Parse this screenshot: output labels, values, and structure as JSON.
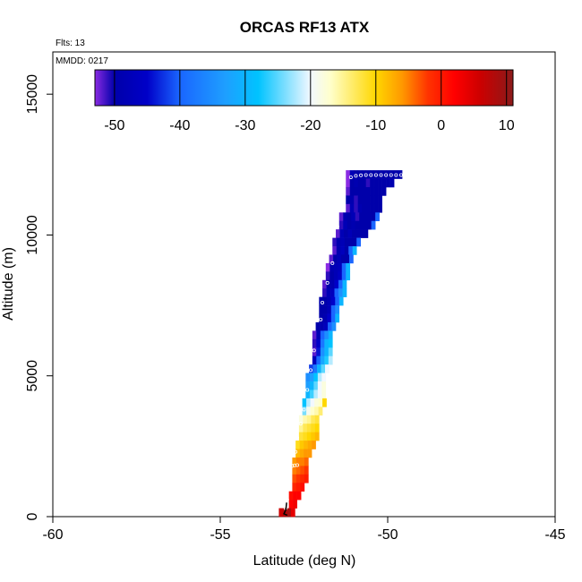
{
  "chart_data": {
    "type": "heatmap",
    "title": "ORCAS RF13 ATX",
    "annotations": {
      "flights": "Flts: 13",
      "date": "MMDD: 0217"
    },
    "xlabel": "Latitude (deg N)",
    "ylabel": "Altitude (m)",
    "xlim": [
      -60,
      -45
    ],
    "ylim": [
      0,
      16500
    ],
    "xticks": [
      -60,
      -55,
      -50,
      -45
    ],
    "xtick_labels": [
      "-60",
      "-55",
      "-50",
      "-45"
    ],
    "yticks": [
      0,
      5000,
      10000,
      15000
    ],
    "ytick_labels": [
      "0",
      "5000",
      "10000",
      "15000"
    ],
    "colorbar": {
      "range": [
        -53,
        11
      ],
      "ticks": [
        -50,
        -40,
        -30,
        -20,
        -10,
        0,
        10
      ],
      "tick_labels": [
        "-50",
        "-40",
        "-30",
        "-20",
        "-10",
        "0",
        "10"
      ],
      "stops": [
        {
          "v": -53,
          "c": "#8a2be2"
        },
        {
          "v": -50,
          "c": "#0000aa"
        },
        {
          "v": -45,
          "c": "#0000c8"
        },
        {
          "v": -40,
          "c": "#1a66ff"
        },
        {
          "v": -33,
          "c": "#1e9fff"
        },
        {
          "v": -28,
          "c": "#00c3ff"
        },
        {
          "v": -20,
          "c": "#f2f8ff"
        },
        {
          "v": -17,
          "c": "#ffffcc"
        },
        {
          "v": -10,
          "c": "#ffd700"
        },
        {
          "v": -6,
          "c": "#ff9900"
        },
        {
          "v": -2,
          "c": "#ff3300"
        },
        {
          "v": 2,
          "c": "#ff0000"
        },
        {
          "v": 6,
          "c": "#cc0000"
        },
        {
          "v": 11,
          "c": "#8b1a1a"
        }
      ]
    },
    "cell_size": {
      "dlat": 0.12,
      "dalt": 300
    },
    "rows": [
      {
        "alt": 12150,
        "lat_start": -51.25,
        "values": [
          -53,
          -48,
          -50,
          -50,
          -50,
          -50,
          -50,
          -50,
          -50,
          -50,
          -50,
          -50,
          -50,
          -50
        ]
      },
      {
        "alt": 11850,
        "lat_start": -51.25,
        "values": [
          -53,
          -50,
          -49,
          -50,
          -50,
          -51,
          -50,
          -50,
          -50,
          -50,
          -50,
          -49
        ]
      },
      {
        "alt": 11550,
        "lat_start": -51.25,
        "values": [
          -52,
          -50,
          -50,
          -50,
          -50,
          -50,
          -50,
          -50,
          -50,
          -50
        ]
      },
      {
        "alt": 11250,
        "lat_start": -51.25,
        "values": [
          -50,
          -49,
          -51,
          -50,
          -50,
          -50,
          -50,
          -50,
          -50
        ]
      },
      {
        "alt": 10950,
        "lat_start": -51.25,
        "values": [
          -52,
          -48,
          -51,
          -49,
          -50,
          -50,
          -50,
          -50,
          -50
        ]
      },
      {
        "alt": 10650,
        "lat_start": -51.45,
        "values": [
          -52,
          -49,
          -50,
          -48,
          -51,
          -50,
          -50,
          -50,
          -50,
          -40
        ]
      },
      {
        "alt": 10350,
        "lat_start": -51.45,
        "values": [
          -51,
          -48,
          -50,
          -49,
          -50,
          -50,
          -50,
          -50,
          -40
        ]
      },
      {
        "alt": 10050,
        "lat_start": -51.55,
        "values": [
          -52,
          -48,
          -50,
          -48,
          -50,
          -50,
          -50,
          -50
        ]
      },
      {
        "alt": 9750,
        "lat_start": -51.65,
        "values": [
          -51,
          -49,
          -48,
          -50,
          -50,
          -50,
          -40
        ]
      },
      {
        "alt": 9450,
        "lat_start": -51.65,
        "values": [
          -52,
          -49,
          -47,
          -50,
          -40,
          -30
        ]
      },
      {
        "alt": 9150,
        "lat_start": -51.75,
        "values": [
          -52,
          -50,
          -48,
          -50,
          -50,
          -40
        ]
      },
      {
        "alt": 8850,
        "lat_start": -51.85,
        "values": [
          -53,
          -49,
          -48,
          -47,
          -40,
          -30
        ]
      },
      {
        "alt": 8550,
        "lat_start": -51.85,
        "values": [
          -51,
          -50,
          -48,
          -46,
          -40,
          -30
        ]
      },
      {
        "alt": 8250,
        "lat_start": -51.95,
        "values": [
          -52,
          -50,
          -49,
          -45,
          -40,
          -30
        ]
      },
      {
        "alt": 7950,
        "lat_start": -51.95,
        "values": [
          -51,
          -48,
          -47,
          -40,
          -35,
          -30
        ]
      },
      {
        "alt": 7650,
        "lat_start": -52.05,
        "values": [
          -50,
          -50,
          -48,
          -45,
          -40,
          -30
        ]
      },
      {
        "alt": 7350,
        "lat_start": -52.05,
        "values": [
          -50,
          -50,
          -48,
          -40,
          -35
        ]
      },
      {
        "alt": 7050,
        "lat_start": -52.05,
        "values": [
          -50,
          -49,
          -45,
          -40,
          -30
        ]
      },
      {
        "alt": 6750,
        "lat_start": -52.15,
        "values": [
          -50,
          -49,
          -47,
          -40,
          -35
        ]
      },
      {
        "alt": 6450,
        "lat_start": -52.25,
        "values": [
          -52,
          -48,
          -40,
          -35,
          -30
        ]
      },
      {
        "alt": 6150,
        "lat_start": -52.25,
        "values": [
          -51,
          -45,
          -38,
          -30,
          -28
        ]
      },
      {
        "alt": 5850,
        "lat_start": -52.25,
        "values": [
          -52,
          -44,
          -35,
          -30,
          -25
        ]
      },
      {
        "alt": 5550,
        "lat_start": -52.25,
        "values": [
          -47,
          -40,
          -32,
          -27,
          -22
        ]
      },
      {
        "alt": 5250,
        "lat_start": -52.35,
        "values": [
          -42,
          -38,
          -30,
          -25,
          -20
        ]
      },
      {
        "alt": 4950,
        "lat_start": -52.45,
        "values": [
          -35,
          -33,
          -28,
          -22,
          -20
        ]
      },
      {
        "alt": 4650,
        "lat_start": -52.45,
        "values": [
          -33,
          -30,
          -25,
          -20,
          -18
        ]
      },
      {
        "alt": 4350,
        "lat_start": -52.45,
        "values": [
          -30,
          -26,
          -22,
          -20,
          -18
        ]
      },
      {
        "alt": 4050,
        "lat_start": -52.55,
        "values": [
          -28,
          -22,
          -20,
          -18,
          -17,
          -10
        ]
      },
      {
        "alt": 3750,
        "lat_start": -52.55,
        "values": [
          -24,
          -19,
          -17,
          -16,
          -14
        ]
      },
      {
        "alt": 3450,
        "lat_start": -52.65,
        "values": [
          -18,
          -16,
          -15,
          -13,
          -12
        ]
      },
      {
        "alt": 3150,
        "lat_start": -52.65,
        "values": [
          -15,
          -13,
          -12,
          -11,
          -10
        ]
      },
      {
        "alt": 2850,
        "lat_start": -52.65,
        "values": [
          -12,
          -11,
          -10,
          -9,
          -8
        ]
      },
      {
        "alt": 2550,
        "lat_start": -52.75,
        "values": [
          -11,
          -9,
          -8,
          -7,
          -6
        ]
      },
      {
        "alt": 2250,
        "lat_start": -52.75,
        "values": [
          -8,
          -7,
          -6,
          -6
        ]
      },
      {
        "alt": 1950,
        "lat_start": -52.85,
        "values": [
          -6,
          -5,
          -5,
          -4
        ]
      },
      {
        "alt": 1650,
        "lat_start": -52.85,
        "values": [
          -5,
          -4,
          -3,
          -2
        ]
      },
      {
        "alt": 1350,
        "lat_start": -52.85,
        "values": [
          -3,
          -2,
          -1,
          0
        ]
      },
      {
        "alt": 1050,
        "lat_start": -52.85,
        "values": [
          -1,
          0,
          1
        ]
      },
      {
        "alt": 750,
        "lat_start": -52.95,
        "values": [
          1,
          2,
          2
        ]
      },
      {
        "alt": 450,
        "lat_start": -52.95,
        "values": [
          2,
          3
        ]
      },
      {
        "alt": 150,
        "lat_start": -53.25,
        "values": [
          6,
          8,
          9,
          4
        ]
      }
    ],
    "track_points": [
      {
        "lat": -51.1,
        "alt": 12050
      },
      {
        "lat": -50.95,
        "alt": 12100
      },
      {
        "lat": -50.8,
        "alt": 12120
      },
      {
        "lat": -50.65,
        "alt": 12130
      },
      {
        "lat": -50.5,
        "alt": 12130
      },
      {
        "lat": -50.35,
        "alt": 12130
      },
      {
        "lat": -50.2,
        "alt": 12130
      },
      {
        "lat": -50.05,
        "alt": 12130
      },
      {
        "lat": -49.9,
        "alt": 12130
      },
      {
        "lat": -49.75,
        "alt": 12130
      },
      {
        "lat": -49.6,
        "alt": 12130
      },
      {
        "lat": -51.5,
        "alt": 10300
      },
      {
        "lat": -51.65,
        "alt": 9000
      },
      {
        "lat": -51.8,
        "alt": 8300
      },
      {
        "lat": -51.95,
        "alt": 7600
      },
      {
        "lat": -52.0,
        "alt": 7000
      },
      {
        "lat": -52.2,
        "alt": 5900
      },
      {
        "lat": -52.3,
        "alt": 5200
      },
      {
        "lat": -52.4,
        "alt": 4500
      },
      {
        "lat": -52.5,
        "alt": 3800
      },
      {
        "lat": -52.6,
        "alt": 3300
      },
      {
        "lat": -52.7,
        "alt": 2800
      },
      {
        "lat": -52.75,
        "alt": 2300
      },
      {
        "lat": -52.85,
        "alt": 1800
      },
      {
        "lat": -52.78,
        "alt": 1820
      },
      {
        "lat": -52.7,
        "alt": 1830
      },
      {
        "lat": -52.95,
        "alt": 1200
      },
      {
        "lat": -53.0,
        "alt": 600
      },
      {
        "lat": -53.05,
        "alt": 300
      }
    ],
    "descent_line": [
      {
        "lat": -53.02,
        "alt": 500
      },
      {
        "lat": -53.04,
        "alt": 250
      },
      {
        "lat": -53.1,
        "alt": 100
      },
      {
        "lat": -53.0,
        "alt": 50
      }
    ]
  }
}
